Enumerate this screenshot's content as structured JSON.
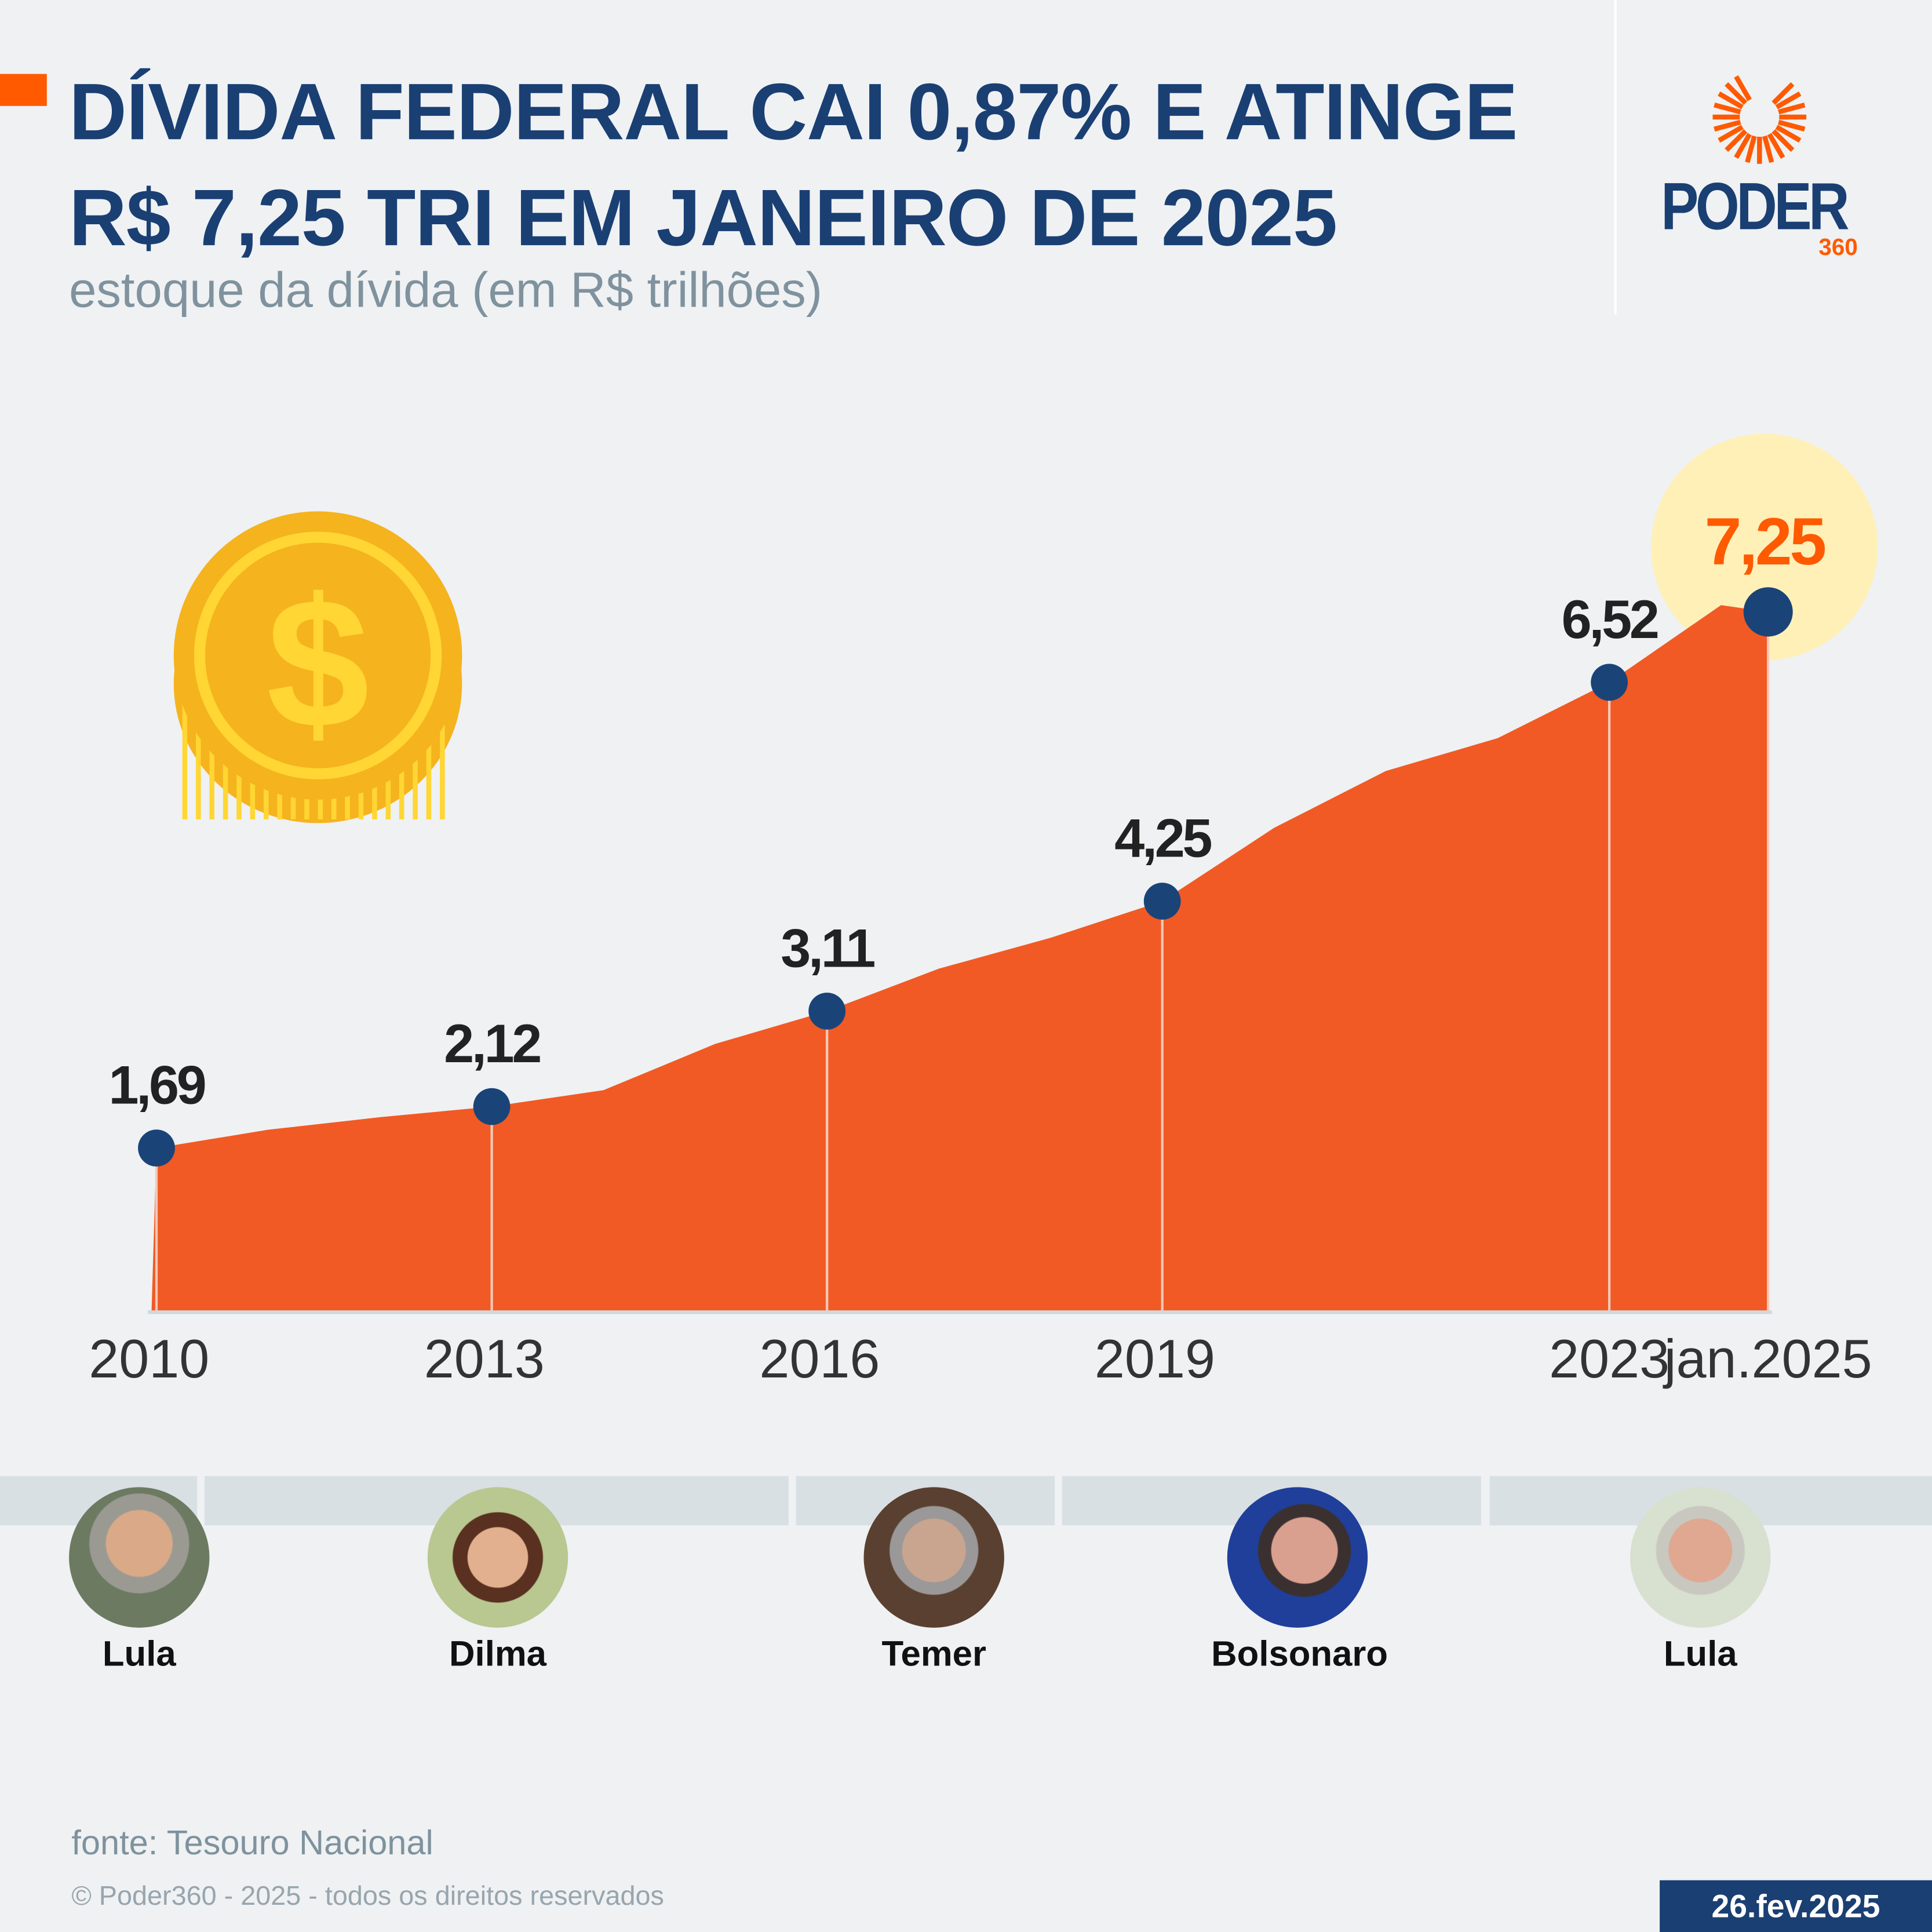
{
  "header": {
    "title": "DÍVIDA FEDERAL CAI 0,87% E ATINGE R$ 7,25 TRI EM JANEIRO DE 2025",
    "subtitle": "estoque da dívida (em R$ trilhões)"
  },
  "logo": {
    "word": "PODER",
    "number": "360"
  },
  "colors": {
    "title": "#1a3f73",
    "area": "#f15a24",
    "marker": "#1a4478",
    "accent": "#ff5a00",
    "highlight": "#fff0b8",
    "coin": "#f5b31e"
  },
  "chart_data": {
    "type": "area",
    "x": [
      "2010",
      "2011",
      "2012",
      "2013",
      "2014",
      "2015",
      "2016",
      "2017",
      "2018",
      "2019",
      "2020",
      "2021",
      "2022",
      "2023",
      "2024",
      "jan.2025"
    ],
    "values": [
      1.69,
      1.88,
      2.01,
      2.12,
      2.29,
      2.77,
      3.11,
      3.55,
      3.87,
      4.25,
      5.01,
      5.6,
      5.94,
      6.52,
      7.32,
      7.25
    ],
    "tick_labels": [
      "2010",
      "2013",
      "2016",
      "2019",
      "2023",
      "jan.2025"
    ],
    "data_labels": [
      {
        "x": "2010",
        "label": "1,69"
      },
      {
        "x": "2013",
        "label": "2,12"
      },
      {
        "x": "2016",
        "label": "3,11"
      },
      {
        "x": "2019",
        "label": "4,25"
      },
      {
        "x": "2023",
        "label": "6,52"
      },
      {
        "x": "jan.2025",
        "label": "7,25",
        "highlight": true
      }
    ],
    "ylim": [
      0,
      7.5
    ],
    "grid": false
  },
  "icons": {
    "coin": "dollar-coin-icon"
  },
  "presidents": [
    {
      "name": "Lula"
    },
    {
      "name": "Dilma"
    },
    {
      "name": "Temer"
    },
    {
      "name": "Bolsonaro"
    },
    {
      "name": "Lula"
    }
  ],
  "footer": {
    "source": "fonte: Tesouro Nacional",
    "copyright": "© Poder360 - 2025 - todos os direitos reservados",
    "date": "26.fev.2025"
  }
}
